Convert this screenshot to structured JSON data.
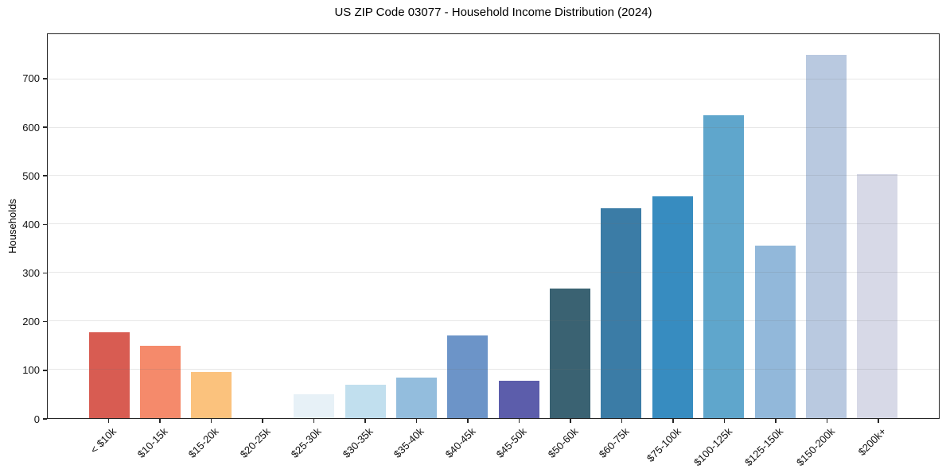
{
  "chart_data": {
    "type": "bar",
    "title": "US ZIP Code 03077 - Household Income Distribution (2024)",
    "xlabel": "",
    "ylabel": "Households",
    "categories": [
      "< $10k",
      "$10-15k",
      "$15-20k",
      "$20-25k",
      "$25-30k",
      "$30-35k",
      "$35-40k",
      "$40-45k",
      "$45-50k",
      "$50-60k",
      "$60-75k",
      "$75-100k",
      "$100-125k",
      "$125-150k",
      "$150-200k",
      "$200k+"
    ],
    "values": [
      177,
      149,
      96,
      0,
      49,
      69,
      83,
      170,
      78,
      268,
      433,
      458,
      626,
      356,
      750,
      504
    ],
    "bar_colors": [
      "#d85c52",
      "#f58a6b",
      "#fbc27d",
      "#eeeeee",
      "#e7f1f7",
      "#c1dfee",
      "#93bddd",
      "#6c94c8",
      "#5c5dab",
      "#3a6272",
      "#3b7ca6",
      "#378cc0",
      "#5fa6cc",
      "#92b8da",
      "#b9c9e0",
      "#d7d9e7"
    ],
    "ylim": [
      0,
      793
    ],
    "yticks": [
      0,
      100,
      200,
      300,
      400,
      500,
      600,
      700
    ],
    "grid": "horizontal",
    "legend": "none"
  }
}
